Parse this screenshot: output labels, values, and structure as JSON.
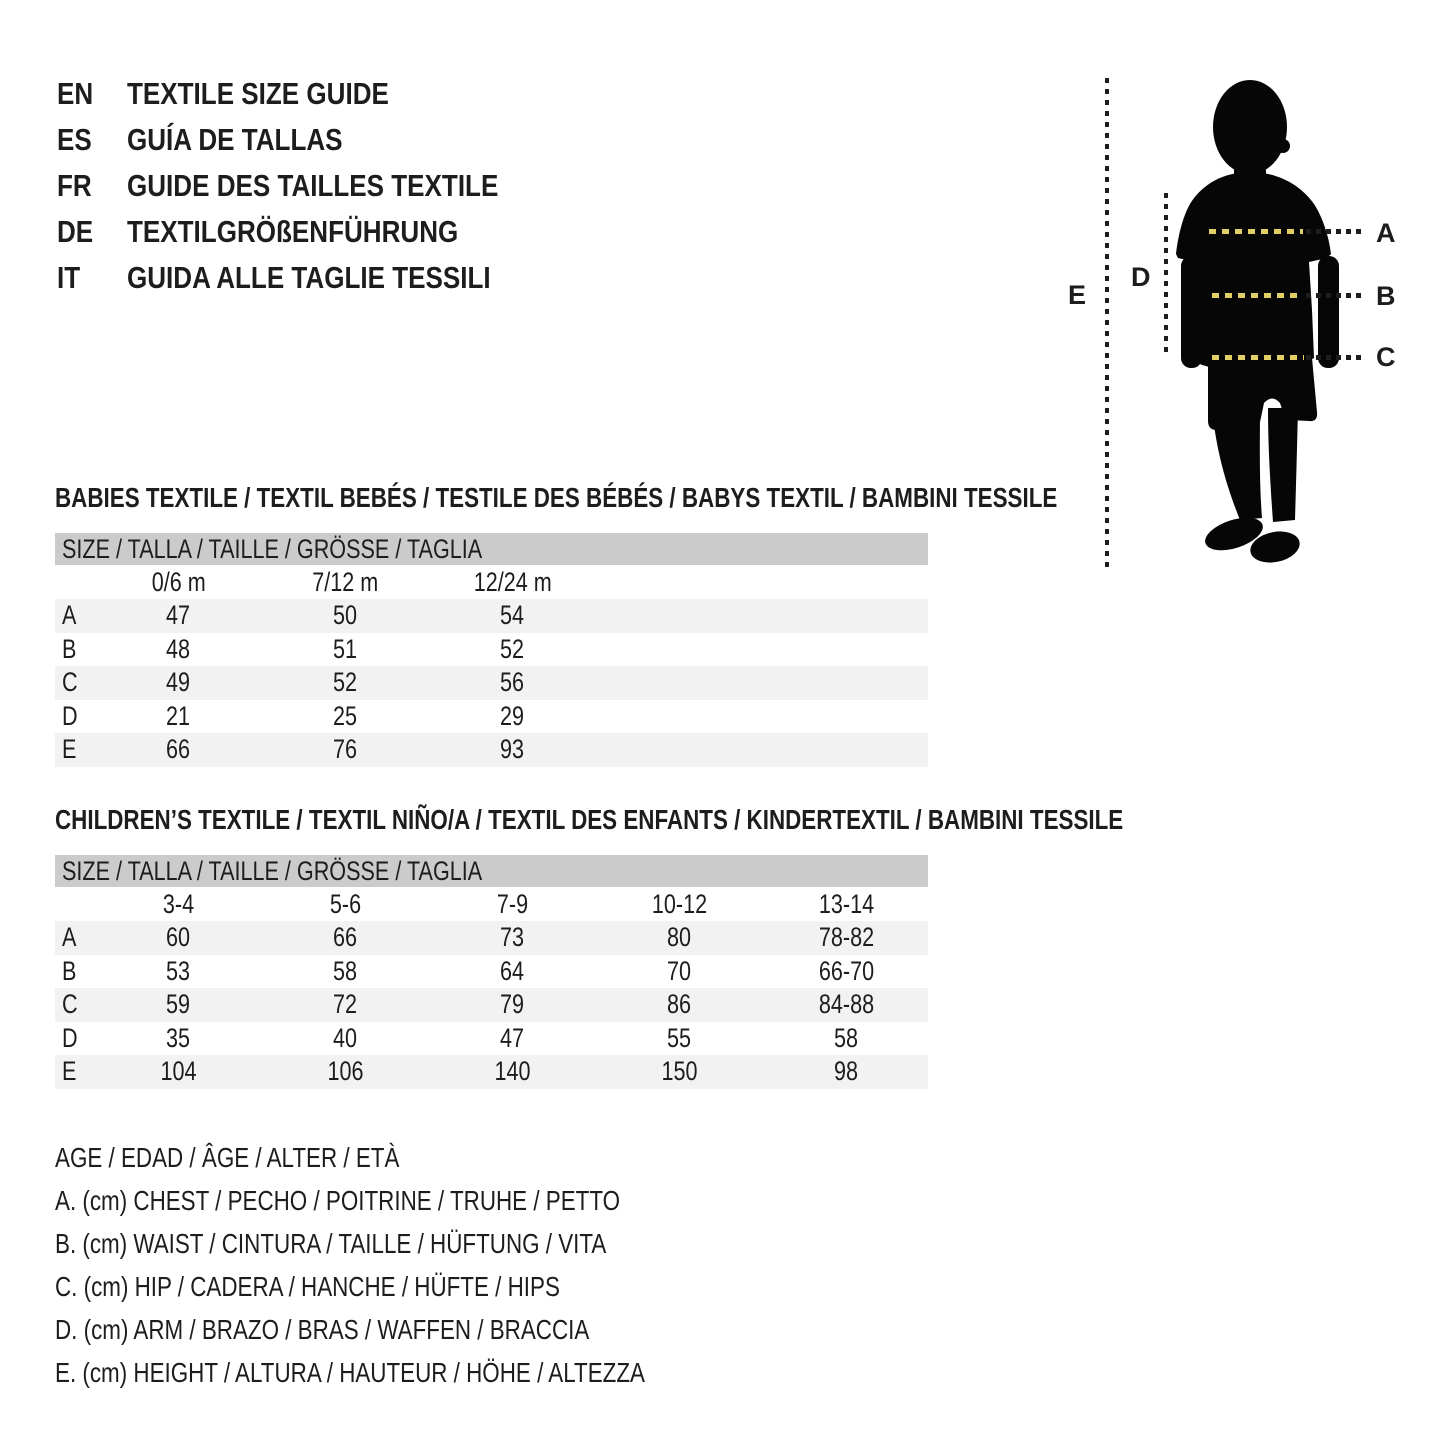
{
  "colors": {
    "ink": "#1d1d1b",
    "band_gray": "#cbcbcb",
    "row_shade_gray": "#f2f2f2",
    "accent_yellow": "#e2cf63",
    "silhouette_black": "#060606"
  },
  "title_block": {
    "entries": [
      {
        "lang": "EN",
        "label": "TEXTILE SIZE GUIDE"
      },
      {
        "lang": "ES",
        "label": "GUÍA DE TALLAS"
      },
      {
        "lang": "FR",
        "label": "GUIDE DES TAILLES TEXTILE"
      },
      {
        "lang": "DE",
        "label": "TEXTILGRÖßENFÜHRUNG"
      },
      {
        "lang": "IT",
        "label": "GUIDA ALLE TAGLIE TESSILI"
      }
    ]
  },
  "figure": {
    "description": "child-silhouette",
    "label_a": "A",
    "label_b": "B",
    "label_c": "C",
    "label_d": "D",
    "label_e": "E"
  },
  "babies_table": {
    "section_title": "BABIES TEXTILE / TEXTIL BEBÉS / TESTILE DES BÉBÉS / BABYS TEXTIL / BAMBINI TESSILE",
    "band": "SIZE / TALLA / TAILLE / GRÖSSE / TAGLIA",
    "columns": [
      "0/6 m",
      "7/12 m",
      "12/24 m"
    ],
    "rows": [
      {
        "label": "A",
        "values": [
          "47",
          "50",
          "54"
        ]
      },
      {
        "label": "B",
        "values": [
          "48",
          "51",
          "52"
        ]
      },
      {
        "label": "C",
        "values": [
          "49",
          "52",
          "56"
        ]
      },
      {
        "label": "D",
        "values": [
          "21",
          "25",
          "29"
        ]
      },
      {
        "label": "E",
        "values": [
          "66",
          "76",
          "93"
        ]
      }
    ]
  },
  "children_table": {
    "section_title": "CHILDREN’S TEXTILE / TEXTIL NIÑO/A / TEXTIL DES ENFANTS / KINDERTEXTIL / BAMBINI TESSILE",
    "band": "SIZE / TALLA / TAILLE / GRÖSSE / TAGLIA",
    "columns": [
      "3-4",
      "5-6",
      "7-9",
      "10-12",
      "13-14"
    ],
    "rows": [
      {
        "label": "A",
        "values": [
          "60",
          "66",
          "73",
          "80",
          "78-82"
        ]
      },
      {
        "label": "B",
        "values": [
          "53",
          "58",
          "64",
          "70",
          "66-70"
        ]
      },
      {
        "label": "C",
        "values": [
          "59",
          "72",
          "79",
          "86",
          "84-88"
        ]
      },
      {
        "label": "D",
        "values": [
          "35",
          "40",
          "47",
          "55",
          "58"
        ]
      },
      {
        "label": "E",
        "values": [
          "104",
          "106",
          "140",
          "150",
          "98"
        ]
      }
    ]
  },
  "legend": {
    "lines": [
      "AGE / EDAD / ÂGE / ALTER / ETÀ",
      "A. (cm) CHEST / PECHO / POITRINE / TRUHE / PETTO",
      "B. (cm) WAIST / CINTURA / TAILLE / HÜFTUNG / VITA",
      "C. (cm) HIP / CADERA / HANCHE / HÜFTE / HIPS",
      "D. (cm) ARM / BRAZO / BRAS / WAFFEN / BRACCIA",
      "E. (cm) HEIGHT / ALTURA / HAUTEUR / HÖHE / ALTEZZA"
    ]
  }
}
